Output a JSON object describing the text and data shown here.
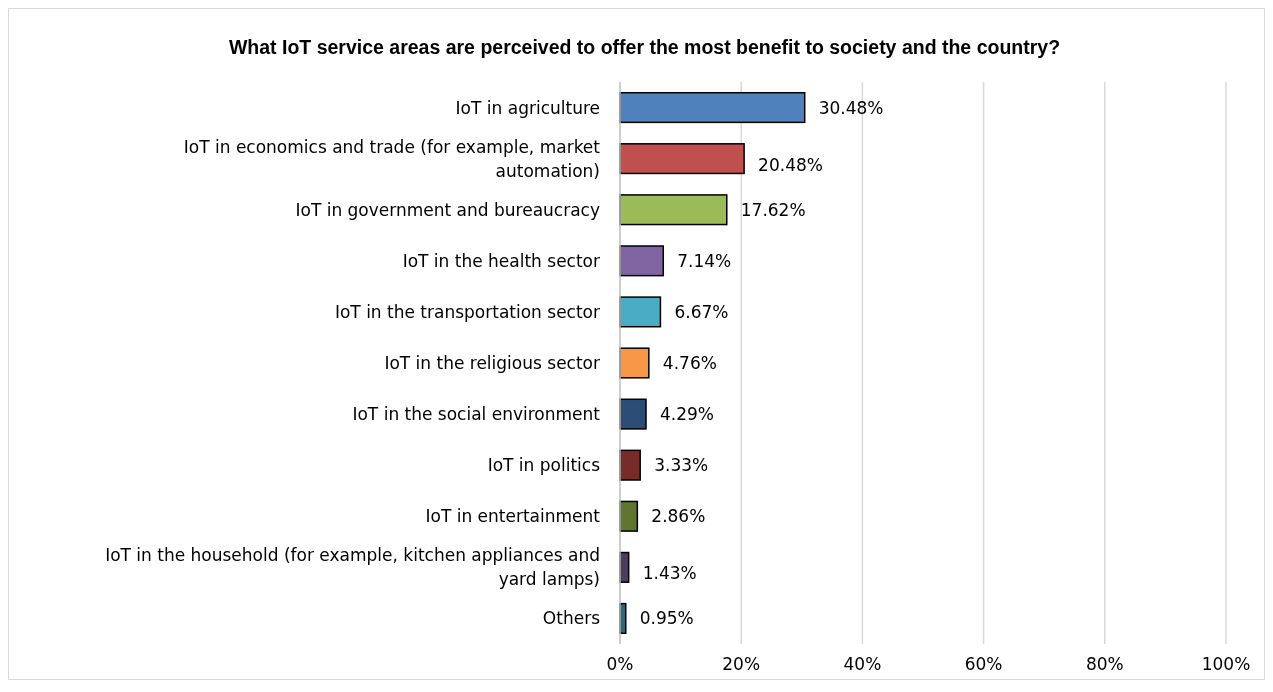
{
  "chart_data": {
    "type": "bar",
    "orientation": "horizontal",
    "title": "What IoT service areas are perceived to offer the most benefit to society and the country?",
    "categories": [
      "IoT in agriculture",
      "IoT in economics and trade (for example, market automation)",
      "IoT in government and bureaucracy",
      "IoT in the health sector",
      "IoT in the transportation sector",
      "IoT in the religious sector",
      "IoT in the social environment",
      "IoT in politics",
      "IoT in entertainment",
      "IoT in the household (for example, kitchen appliances and yard lamps)",
      "Others"
    ],
    "values": [
      30.48,
      20.48,
      17.62,
      7.14,
      6.67,
      4.76,
      4.29,
      3.33,
      2.86,
      1.43,
      0.95
    ],
    "value_labels": [
      "30.48%",
      "20.48%",
      "17.62%",
      "7.14%",
      "6.67%",
      "4.76%",
      "4.29%",
      "3.33%",
      "2.86%",
      "1.43%",
      "0.95%"
    ],
    "colors": [
      "#4f81bd",
      "#c0504d",
      "#9bbb59",
      "#8064a2",
      "#4bacc6",
      "#f79646",
      "#2c4d75",
      "#772c2a",
      "#5f7530",
      "#4d3b62",
      "#276a7c"
    ],
    "xlim": [
      0,
      100
    ],
    "xticks": [
      {
        "value": 0,
        "label": "0%"
      },
      {
        "value": 20,
        "label": "20%"
      },
      {
        "value": 40,
        "label": "40%"
      },
      {
        "value": 60,
        "label": "60%"
      },
      {
        "value": 80,
        "label": "80%"
      },
      {
        "value": 100,
        "label": "100%"
      }
    ],
    "grid": "x"
  }
}
